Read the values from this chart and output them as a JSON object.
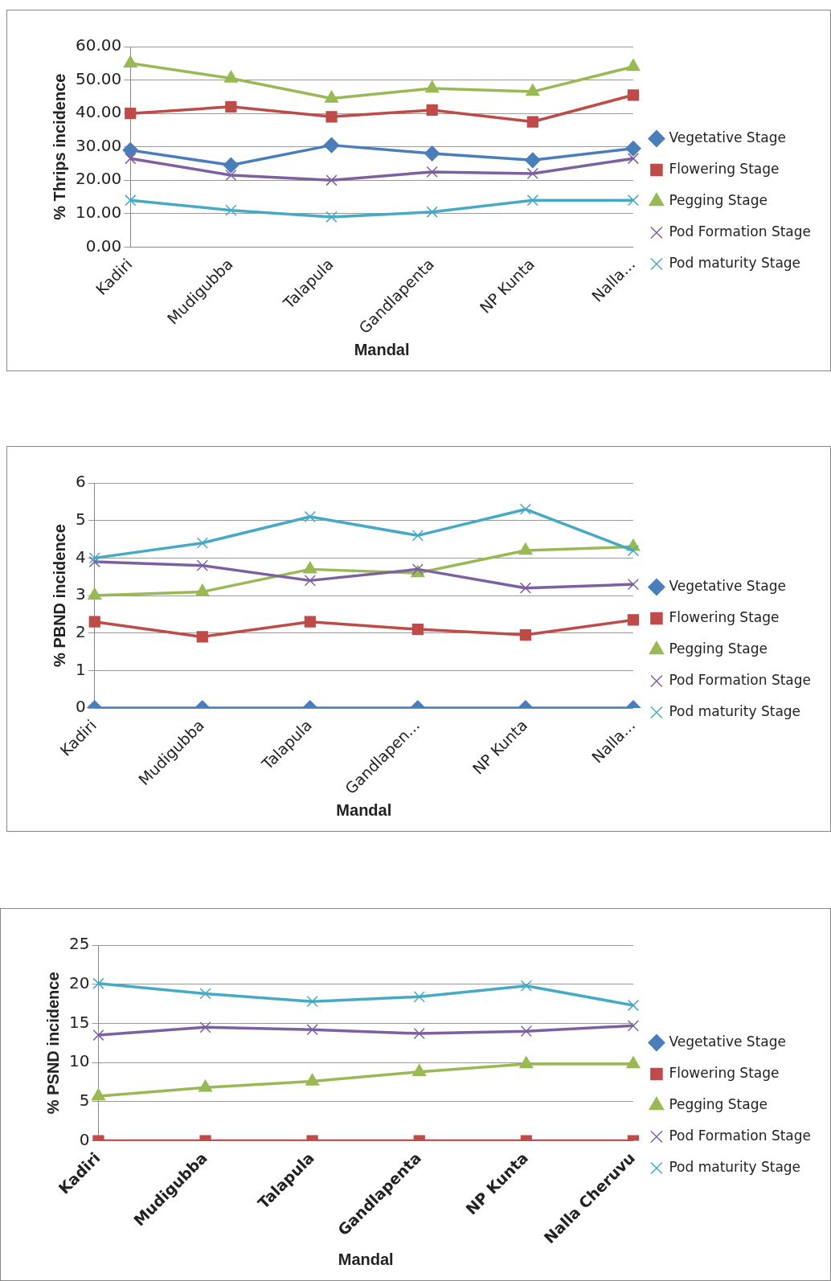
{
  "chart_data": [
    {
      "type": "line",
      "xlabel": "Mandal",
      "ylabel": "% Thrips incidence",
      "categories": [
        "Kadiri",
        "Mudigubba",
        "Talapula",
        "Gandlapenta",
        "NP Kunta",
        "Nalla..."
      ],
      "ylim": [
        0,
        60
      ],
      "yticks": [
        {
          "value": 0,
          "label": "0.00"
        },
        {
          "value": 10,
          "label": "10.00"
        },
        {
          "value": 20,
          "label": "20.00"
        },
        {
          "value": 30,
          "label": "30.00"
        },
        {
          "value": 40,
          "label": "40.00"
        },
        {
          "value": 50,
          "label": "50.00"
        },
        {
          "value": 60,
          "label": "60.00"
        }
      ],
      "grid": "y",
      "legend": "right",
      "series": [
        {
          "name": "Vegetative Stage",
          "color": "#4a7ebb",
          "marker": "diamond",
          "values": [
            29,
            24.5,
            30.5,
            28,
            26,
            29.5
          ]
        },
        {
          "name": "Flowering Stage",
          "color": "#be4b48",
          "marker": "square",
          "values": [
            40,
            42,
            39,
            41,
            37.5,
            45.5
          ]
        },
        {
          "name": "Pegging Stage",
          "color": "#98b954",
          "marker": "triangle",
          "values": [
            55,
            50.5,
            44.5,
            47.5,
            46.5,
            54
          ]
        },
        {
          "name": "Pod Formation Stage",
          "color": "#7d60a0",
          "marker": "cross",
          "values": [
            26.5,
            21.5,
            20,
            22.5,
            22,
            26.5
          ]
        },
        {
          "name": "Pod maturity Stage",
          "color": "#46aac5",
          "marker": "cross",
          "values": [
            14,
            11,
            9,
            10.5,
            14,
            14
          ]
        }
      ]
    },
    {
      "type": "line",
      "xlabel": "Mandal",
      "ylabel": "% PBND incidence",
      "categories": [
        "Kadiri",
        "Mudigubba",
        "Talapula",
        "Gandlapen...",
        "NP Kunta",
        "Nalla..."
      ],
      "ylim": [
        0,
        6
      ],
      "yticks": [
        0,
        1,
        2,
        3,
        4,
        5,
        6
      ],
      "grid": "y",
      "legend": "right",
      "series": [
        {
          "name": "Vegetative Stage",
          "color": "#4a7ebb",
          "marker": "diamond",
          "values": [
            0,
            0,
            0,
            0,
            0,
            0
          ]
        },
        {
          "name": "Flowering Stage",
          "color": "#be4b48",
          "marker": "square",
          "values": [
            2.3,
            1.9,
            2.3,
            2.1,
            1.95,
            2.35
          ]
        },
        {
          "name": "Pegging Stage",
          "color": "#98b954",
          "marker": "triangle",
          "values": [
            3,
            3.1,
            3.7,
            3.6,
            4.2,
            4.3
          ]
        },
        {
          "name": "Pod Formation Stage",
          "color": "#7d60a0",
          "marker": "cross",
          "values": [
            3.9,
            3.8,
            3.4,
            3.7,
            3.2,
            3.3
          ]
        },
        {
          "name": "Pod maturity Stage",
          "color": "#46aac5",
          "marker": "cross",
          "values": [
            4,
            4.4,
            5.1,
            4.6,
            5.3,
            4.2
          ]
        }
      ]
    },
    {
      "type": "line",
      "xlabel": "Mandal",
      "ylabel": "% PSND incidence",
      "categories": [
        "Kadiri",
        "Mudigubba",
        "Talapula",
        "Gandlapenta",
        "NP Kunta",
        "Nalla Cheruvu"
      ],
      "ylim": [
        0,
        25
      ],
      "yticks": [
        0,
        5,
        10,
        15,
        20,
        25
      ],
      "grid": "y",
      "legend": "right",
      "series": [
        {
          "name": "Vegetative Stage",
          "color": "#4a7ebb",
          "marker": "diamond",
          "values": [
            null,
            null,
            null,
            null,
            null,
            null
          ]
        },
        {
          "name": "Flowering Stage",
          "color": "#be4b48",
          "marker": "square",
          "values": [
            0,
            0,
            0,
            0,
            0,
            0
          ]
        },
        {
          "name": "Pegging Stage",
          "color": "#98b954",
          "marker": "triangle",
          "values": [
            5.7,
            6.8,
            7.6,
            8.8,
            9.8,
            9.8
          ]
        },
        {
          "name": "Pod Formation Stage",
          "color": "#7d60a0",
          "marker": "cross",
          "values": [
            13.5,
            14.5,
            14.2,
            13.7,
            14,
            14.7
          ]
        },
        {
          "name": "Pod maturity Stage",
          "color": "#46aac5",
          "marker": "cross",
          "values": [
            20.1,
            18.8,
            17.8,
            18.4,
            19.8,
            17.3
          ]
        }
      ]
    }
  ]
}
